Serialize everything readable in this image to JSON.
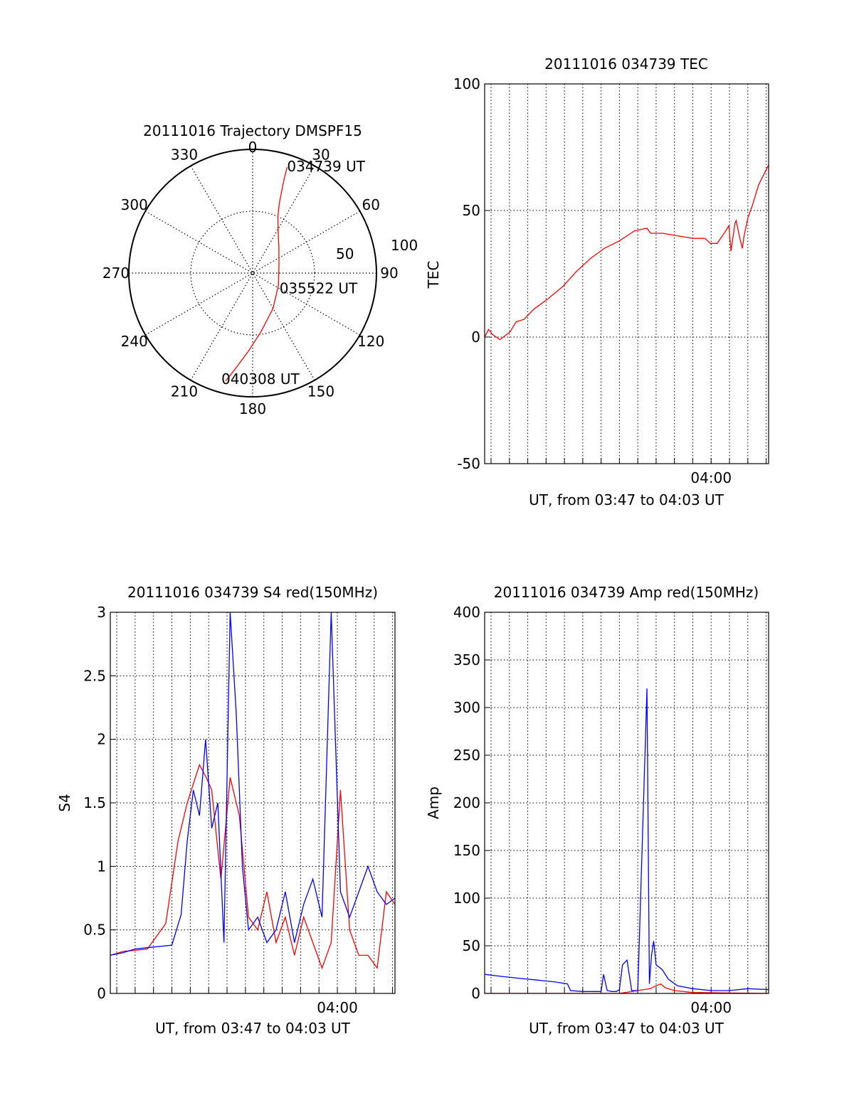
{
  "colors": {
    "red": "#ff0000",
    "blue": "#0000ff",
    "black": "#000000"
  },
  "chart_data": [
    {
      "id": "trajectory",
      "type": "polar",
      "title": "20111016 Trajectory DMSPF15",
      "angle_ticks": [
        "0",
        "30",
        "60",
        "90",
        "120",
        "150",
        "180",
        "210",
        "240",
        "270",
        "300",
        "330"
      ],
      "radial_ticks": [
        "50",
        "100"
      ],
      "rlim": [
        0,
        100
      ],
      "grid": true,
      "series": [
        {
          "color": "red",
          "points": [
            {
              "az": 18,
              "r": 90
            },
            {
              "az": 18.5,
              "r": 80
            },
            {
              "az": 19.5,
              "r": 70
            },
            {
              "az": 21,
              "r": 60
            },
            {
              "az": 24,
              "r": 50
            },
            {
              "az": 31,
              "r": 40
            },
            {
              "az": 45,
              "r": 30
            },
            {
              "az": 75,
              "r": 22
            },
            {
              "az": 115,
              "r": 23
            },
            {
              "az": 150,
              "r": 33
            },
            {
              "az": 172,
              "r": 48
            },
            {
              "az": 183,
              "r": 63
            },
            {
              "az": 190,
              "r": 78
            },
            {
              "az": 194,
              "r": 90
            }
          ]
        }
      ],
      "annotations": [
        {
          "text": "034739 UT",
          "az": 18,
          "r": 90
        },
        {
          "text": "035522 UT",
          "az": 100,
          "r": 22
        },
        {
          "text": "040308 UT",
          "az": 194,
          "r": 90
        }
      ]
    },
    {
      "id": "tec",
      "type": "line",
      "title": "20111016 034739 TEC",
      "xlabel": "UT, from 03:47 to 04:03 UT",
      "ylabel": "TEC",
      "xlim": [
        "03:47:39",
        "04:03:08"
      ],
      "ylim": [
        -50,
        100
      ],
      "y_ticks": [
        "100",
        "50",
        "0",
        "-50"
      ],
      "x_tick_labels": [
        {
          "label": "04:00",
          "t": "04:00:00"
        }
      ],
      "grid": true,
      "series": [
        {
          "color": "red",
          "x": [
            "03:47:39",
            "03:47:52",
            "03:48:05",
            "03:48:29",
            "03:48:40",
            "03:49:02",
            "03:49:22",
            "03:49:48",
            "03:50:20",
            "03:51:05",
            "03:51:55",
            "03:52:40",
            "03:53:25",
            "03:54:10",
            "03:55:00",
            "03:55:50",
            "03:56:30",
            "03:56:42",
            "03:57:20",
            "03:58:10",
            "03:59:00",
            "03:59:40",
            "03:59:58",
            "04:00:20",
            "04:00:48",
            "04:00:58",
            "04:01:05",
            "04:01:18",
            "04:01:22",
            "04:01:32",
            "04:01:42",
            "04:01:48",
            "04:02:00",
            "04:02:15",
            "04:02:35",
            "04:03:08"
          ],
          "y": [
            0,
            3,
            1,
            -1,
            0,
            2,
            6,
            7,
            11,
            15,
            20,
            26,
            31,
            35,
            38,
            42,
            43,
            41,
            41,
            40,
            39,
            39,
            37,
            37,
            42,
            44,
            34,
            45,
            46,
            40,
            35,
            40,
            47,
            52,
            60,
            68
          ]
        }
      ]
    },
    {
      "id": "s4",
      "type": "line",
      "title": "20111016 034739 S4 red(150MHz)",
      "xlabel": "UT, from 03:47 to 04:03 UT",
      "ylabel": "S4",
      "xlim": [
        "03:47:39",
        "04:03:08"
      ],
      "ylim": [
        0,
        3
      ],
      "y_ticks": [
        "3",
        "2.5",
        "2",
        "1.5",
        "1",
        "0.5",
        "0"
      ],
      "x_tick_labels": [
        {
          "label": "04:00",
          "t": "04:00:00"
        }
      ],
      "grid": true,
      "series": [
        {
          "color": "red",
          "x": [
            "03:47:39",
            "03:48:20",
            "03:49:00",
            "03:49:40",
            "03:50:40",
            "03:51:20",
            "03:51:50",
            "03:52:30",
            "03:52:52",
            "03:53:10",
            "03:53:40",
            "03:54:10",
            "03:54:40",
            "03:55:10",
            "03:55:40",
            "03:56:10",
            "03:56:40",
            "03:57:10",
            "03:57:40",
            "03:58:10",
            "03:58:40",
            "03:59:10",
            "03:59:40",
            "04:00:10",
            "04:00:40",
            "04:01:10",
            "04:01:40",
            "04:02:10",
            "04:02:40",
            "04:03:08"
          ],
          "y": [
            0.3,
            0.33,
            0.34,
            0.35,
            0.55,
            1.2,
            1.5,
            1.8,
            1.7,
            1.6,
            0.9,
            1.7,
            1.4,
            0.6,
            0.5,
            0.8,
            0.4,
            0.6,
            0.3,
            0.6,
            0.4,
            0.2,
            0.4,
            1.6,
            0.5,
            0.3,
            0.3,
            0.2,
            0.8,
            0.7
          ]
        },
        {
          "color": "blue",
          "x": [
            "03:47:39",
            "03:48:20",
            "03:49:00",
            "03:49:40",
            "03:51:00",
            "03:51:30",
            "03:51:50",
            "03:52:10",
            "03:52:30",
            "03:52:50",
            "03:53:10",
            "03:53:30",
            "03:53:50",
            "03:54:10",
            "03:54:30",
            "03:54:50",
            "03:55:10",
            "03:55:40",
            "03:56:10",
            "03:56:40",
            "03:57:10",
            "03:57:40",
            "03:58:10",
            "03:58:40",
            "03:59:10",
            "03:59:40",
            "04:00:10",
            "04:00:40",
            "04:01:10",
            "04:01:40",
            "04:02:10",
            "04:02:40",
            "04:03:08"
          ],
          "y": [
            0.3,
            0.32,
            0.35,
            0.36,
            0.38,
            0.62,
            1.2,
            1.6,
            1.4,
            2.0,
            1.3,
            1.5,
            0.4,
            3.0,
            2.2,
            1.0,
            0.5,
            0.6,
            0.4,
            0.5,
            0.8,
            0.4,
            0.7,
            0.9,
            0.6,
            3.0,
            0.8,
            0.6,
            0.8,
            1.0,
            0.8,
            0.7,
            0.75
          ]
        }
      ]
    },
    {
      "id": "amp",
      "type": "line",
      "title": "20111016 034739 Amp red(150MHz)",
      "xlabel": "UT, from 03:47 to 04:03 UT",
      "ylabel": "Amp",
      "xlim": [
        "03:47:39",
        "04:03:08"
      ],
      "ylim": [
        0,
        400
      ],
      "y_ticks": [
        "400",
        "350",
        "300",
        "250",
        "200",
        "150",
        "100",
        "50",
        "0"
      ],
      "x_tick_labels": [
        {
          "label": "04:00",
          "t": "04:00:00"
        }
      ],
      "grid": true,
      "series": [
        {
          "color": "red",
          "x": [
            "03:47:39",
            "03:55:00",
            "03:56:40",
            "03:57:00",
            "03:57:15",
            "03:57:30",
            "03:58:00",
            "03:59:00",
            "04:03:08"
          ],
          "y": [
            0,
            0,
            5,
            8,
            10,
            6,
            3,
            1,
            0
          ]
        },
        {
          "color": "blue",
          "x": [
            "03:47:39",
            "03:48:30",
            "03:49:30",
            "03:50:30",
            "03:51:30",
            "03:52:10",
            "03:52:20",
            "03:53:00",
            "03:54:00",
            "03:54:08",
            "03:54:20",
            "03:54:35",
            "03:54:50",
            "03:55:00",
            "03:55:10",
            "03:55:25",
            "03:55:40",
            "03:56:00",
            "03:56:30",
            "03:56:38",
            "03:56:45",
            "03:56:52",
            "03:57:00",
            "03:57:20",
            "03:57:40",
            "03:58:10",
            "03:59:00",
            "04:00:00",
            "04:01:00",
            "04:02:00",
            "04:03:08"
          ],
          "y": [
            20,
            18,
            16,
            14,
            12,
            10,
            3,
            2,
            2,
            20,
            3,
            2,
            2,
            4,
            30,
            35,
            3,
            3,
            320,
            10,
            40,
            55,
            30,
            25,
            15,
            8,
            5,
            3,
            3,
            5,
            4
          ]
        }
      ]
    }
  ]
}
